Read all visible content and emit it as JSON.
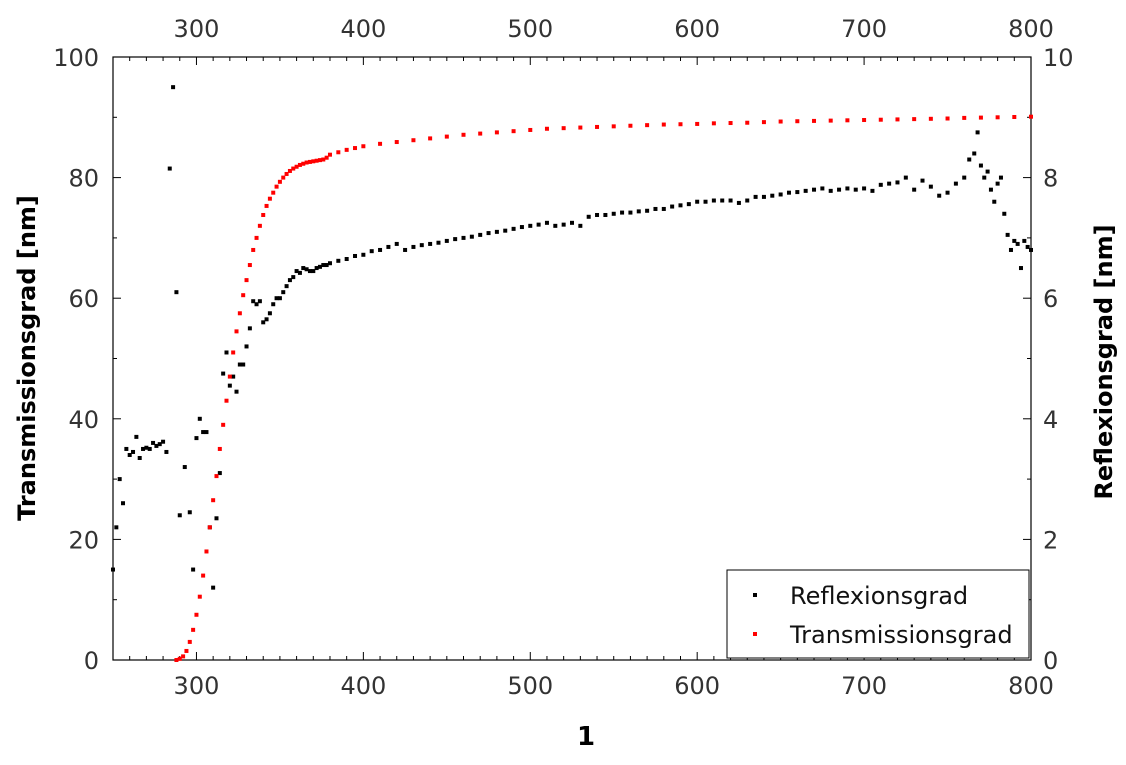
{
  "chart_data": {
    "type": "scatter",
    "title": "",
    "xlabel": "1",
    "ylabel_left": "Transmissionsgrad [nm]",
    "ylabel_right": "Reflexionsgrad [nm]",
    "xlim": [
      250,
      800
    ],
    "ylim_left": [
      0,
      100
    ],
    "ylim_right": [
      0,
      10
    ],
    "x_ticks": [
      300,
      400,
      500,
      600,
      700,
      800
    ],
    "y_ticks_left": [
      0,
      20,
      40,
      60,
      80,
      100
    ],
    "y_ticks_right": [
      0,
      2,
      4,
      6,
      8,
      10
    ],
    "grid": false,
    "legend_position": "bottom-right",
    "legend": [
      "Reflexionsgrad",
      "Transmissionsgrad"
    ],
    "colors": {
      "reflexion": "#000000",
      "transmission": "#ff0000"
    },
    "series": [
      {
        "name": "Reflexionsgrad",
        "axis": "right",
        "color": "#000000",
        "x": [
          250,
          252,
          254,
          256,
          258,
          260,
          262,
          264,
          266,
          268,
          270,
          272,
          274,
          276,
          278,
          280,
          282,
          284,
          286,
          288,
          290,
          293,
          296,
          298,
          300,
          302,
          304,
          306,
          308,
          310,
          312,
          314,
          316,
          318,
          320,
          322,
          324,
          326,
          328,
          330,
          332,
          334,
          336,
          338,
          340,
          342,
          344,
          346,
          348,
          350,
          352,
          354,
          356,
          358,
          360,
          362,
          364,
          366,
          368,
          370,
          372,
          374,
          376,
          378,
          380,
          385,
          390,
          395,
          400,
          405,
          410,
          415,
          420,
          425,
          430,
          435,
          440,
          445,
          450,
          455,
          460,
          465,
          470,
          475,
          480,
          485,
          490,
          495,
          500,
          505,
          510,
          515,
          520,
          525,
          530,
          535,
          540,
          545,
          550,
          555,
          560,
          565,
          570,
          575,
          580,
          585,
          590,
          595,
          600,
          605,
          610,
          615,
          620,
          625,
          630,
          635,
          640,
          645,
          650,
          655,
          660,
          665,
          670,
          675,
          680,
          685,
          690,
          695,
          700,
          705,
          710,
          715,
          720,
          725,
          730,
          735,
          740,
          745,
          750,
          755,
          760,
          763,
          766,
          768,
          770,
          772,
          774,
          776,
          778,
          780,
          782,
          784,
          786,
          788,
          790,
          792,
          794,
          796,
          798,
          800
        ],
        "y": [
          1.5,
          2.2,
          3.0,
          2.6,
          3.5,
          3.4,
          3.45,
          3.7,
          3.35,
          3.5,
          3.52,
          3.5,
          3.6,
          3.55,
          3.58,
          3.62,
          3.45,
          8.15,
          9.5,
          6.1,
          2.4,
          3.2,
          2.45,
          1.5,
          3.68,
          4.0,
          3.78,
          3.78,
          2.2,
          1.2,
          2.35,
          3.1,
          4.75,
          5.1,
          4.55,
          4.7,
          4.45,
          4.9,
          4.9,
          5.2,
          5.5,
          5.95,
          5.9,
          5.95,
          5.6,
          5.65,
          5.75,
          5.9,
          6.0,
          6.0,
          6.1,
          6.2,
          6.3,
          6.35,
          6.45,
          6.42,
          6.5,
          6.48,
          6.45,
          6.45,
          6.5,
          6.52,
          6.55,
          6.55,
          6.58,
          6.62,
          6.65,
          6.7,
          6.72,
          6.78,
          6.8,
          6.85,
          6.9,
          6.8,
          6.85,
          6.88,
          6.9,
          6.92,
          6.95,
          6.98,
          7.0,
          7.02,
          7.05,
          7.08,
          7.1,
          7.12,
          7.15,
          7.18,
          7.2,
          7.22,
          7.25,
          7.2,
          7.22,
          7.25,
          7.2,
          7.35,
          7.38,
          7.38,
          7.4,
          7.42,
          7.42,
          7.44,
          7.45,
          7.48,
          7.48,
          7.52,
          7.54,
          7.56,
          7.6,
          7.6,
          7.62,
          7.62,
          7.62,
          7.58,
          7.62,
          7.68,
          7.68,
          7.7,
          7.72,
          7.75,
          7.76,
          7.78,
          7.8,
          7.82,
          7.78,
          7.8,
          7.82,
          7.8,
          7.82,
          7.78,
          7.88,
          7.9,
          7.92,
          8.0,
          7.8,
          7.95,
          7.85,
          7.7,
          7.75,
          7.9,
          8.0,
          8.3,
          8.4,
          8.75,
          8.2,
          8.0,
          8.1,
          7.8,
          7.6,
          7.9,
          8.0,
          7.4,
          7.05,
          6.8,
          6.95,
          6.9,
          6.5,
          6.95,
          6.85,
          6.8
        ]
      },
      {
        "name": "Transmissionsgrad",
        "axis": "left",
        "color": "#ff0000",
        "x": [
          288,
          290,
          292,
          294,
          296,
          298,
          300,
          302,
          304,
          306,
          308,
          310,
          312,
          314,
          316,
          318,
          320,
          322,
          324,
          326,
          328,
          330,
          332,
          334,
          336,
          338,
          340,
          342,
          344,
          346,
          348,
          350,
          352,
          354,
          356,
          358,
          360,
          362,
          364,
          366,
          368,
          370,
          372,
          374,
          376,
          378,
          380,
          385,
          390,
          395,
          400,
          410,
          420,
          430,
          440,
          450,
          460,
          470,
          480,
          490,
          500,
          510,
          520,
          530,
          540,
          550,
          560,
          570,
          580,
          590,
          600,
          610,
          620,
          630,
          640,
          650,
          660,
          670,
          680,
          690,
          700,
          710,
          720,
          730,
          740,
          750,
          760,
          770,
          780,
          790,
          800
        ],
        "y": [
          0,
          0.2,
          0.6,
          1.5,
          3,
          5,
          7.5,
          10.5,
          14,
          18,
          22,
          26.5,
          30.5,
          35,
          39,
          43,
          47,
          51,
          54.5,
          57.5,
          60.5,
          63,
          65.5,
          68,
          70,
          72,
          73.8,
          75.3,
          76.5,
          77.5,
          78.5,
          79.3,
          80,
          80.6,
          81.1,
          81.5,
          81.8,
          82.1,
          82.3,
          82.5,
          82.6,
          82.7,
          82.8,
          82.9,
          83,
          83.3,
          83.8,
          84.2,
          84.6,
          84.9,
          85.2,
          85.6,
          85.9,
          86.2,
          86.5,
          86.8,
          87.1,
          87.3,
          87.5,
          87.7,
          87.9,
          88.1,
          88.2,
          88.3,
          88.4,
          88.5,
          88.6,
          88.7,
          88.8,
          88.85,
          88.9,
          89,
          89.05,
          89.1,
          89.2,
          89.3,
          89.35,
          89.4,
          89.45,
          89.5,
          89.55,
          89.6,
          89.65,
          89.7,
          89.75,
          89.8,
          89.9,
          89.95,
          90,
          90.05,
          90.1
        ]
      }
    ]
  }
}
